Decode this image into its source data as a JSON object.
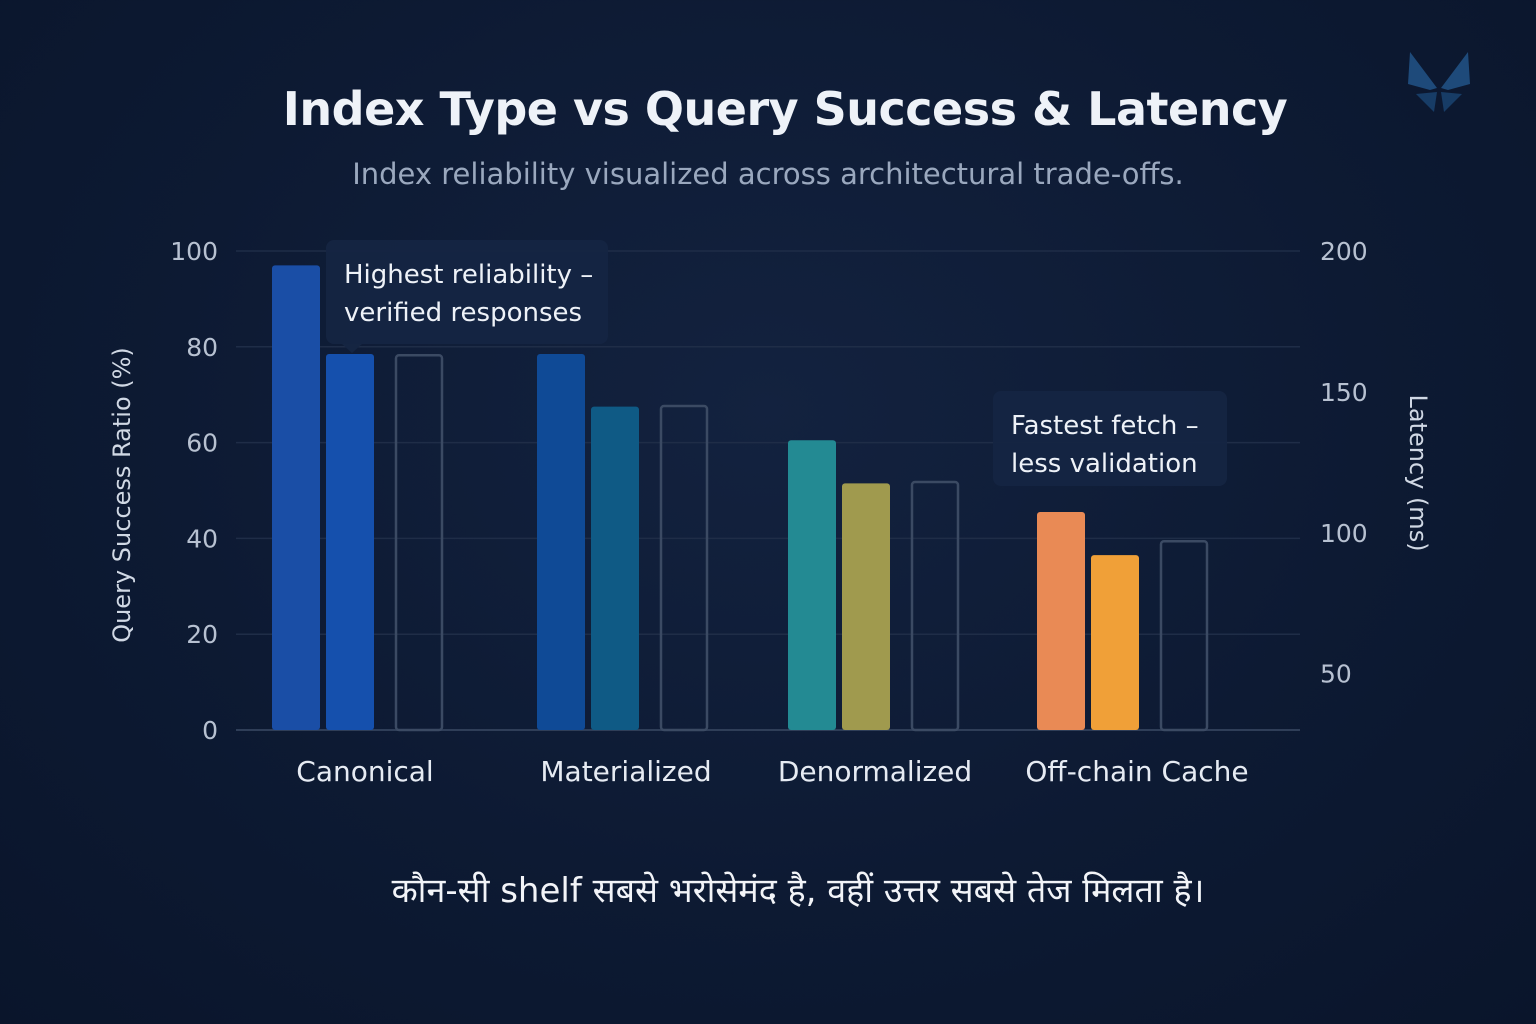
{
  "title": "Index Type vs Query Success & Latency",
  "subtitle": "Index reliability visualized across architectural trade-offs.",
  "footer": "कौन-सी shelf सबसे भरोसेमंद है, वहीं उत्तर सबसे तेज मिलता है।",
  "chart_data": {
    "type": "bar",
    "categories": [
      "Canonical",
      "Materialized",
      "Denormalized",
      "Off-chain Cache"
    ],
    "series": [
      {
        "name": "Query Success Ratio (%)",
        "axis": "left",
        "values": [
          97,
          78.5,
          60.5,
          45.5
        ],
        "colors": [
          "#1a4ea6",
          "#0f4a96",
          "#238a93",
          "#e98a55"
        ]
      },
      {
        "name": "Query Success Ratio (%) (secondary)",
        "axis": "left",
        "values": [
          78.5,
          67.5,
          51.5,
          36.5
        ],
        "colors": [
          "#1550ad",
          "#0f5a85",
          "#a09a4e",
          "#f0a038"
        ]
      },
      {
        "name": "Latency (ms)",
        "axis": "right",
        "style": "outline",
        "values": [
          163,
          145,
          118,
          97
        ]
      }
    ],
    "ylabel_left": "Query Success Ratio (%)",
    "ylabel_right": "Latency (ms)",
    "ylim_left": [
      0,
      100
    ],
    "yticks_left": [
      0,
      20,
      40,
      60,
      80,
      100
    ],
    "ylim_right": [
      30,
      200
    ],
    "yticks_right": [
      50,
      100,
      150,
      200
    ],
    "grid": true,
    "annotations": [
      {
        "category": "Canonical",
        "lines": [
          "Highest reliability –",
          "verified responses"
        ]
      },
      {
        "category": "Off-chain Cache",
        "lines": [
          "Fastest fetch –",
          "less validation"
        ]
      }
    ]
  }
}
